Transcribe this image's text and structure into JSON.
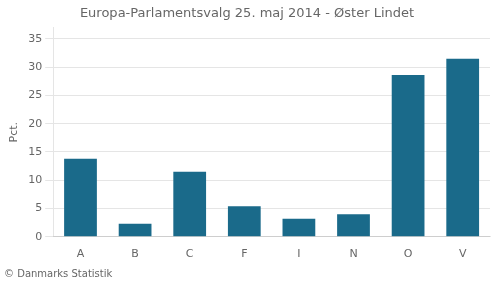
{
  "chart_data": {
    "type": "bar",
    "title": "Europa-Parlamentsvalg 25. maj 2014 - Øster Lindet",
    "categories": [
      "A",
      "B",
      "C",
      "F",
      "I",
      "N",
      "O",
      "V"
    ],
    "values": [
      13.8,
      2.3,
      11.5,
      5.4,
      3.2,
      4.0,
      28.6,
      31.5
    ],
    "color": "#1a6a8a",
    "ylabel": "Pct.",
    "footer": "© Danmarks Statistik",
    "ylim": [
      0,
      37
    ],
    "yticks": [
      0,
      5,
      10,
      15,
      20,
      25,
      30,
      35
    ],
    "grid": true
  }
}
